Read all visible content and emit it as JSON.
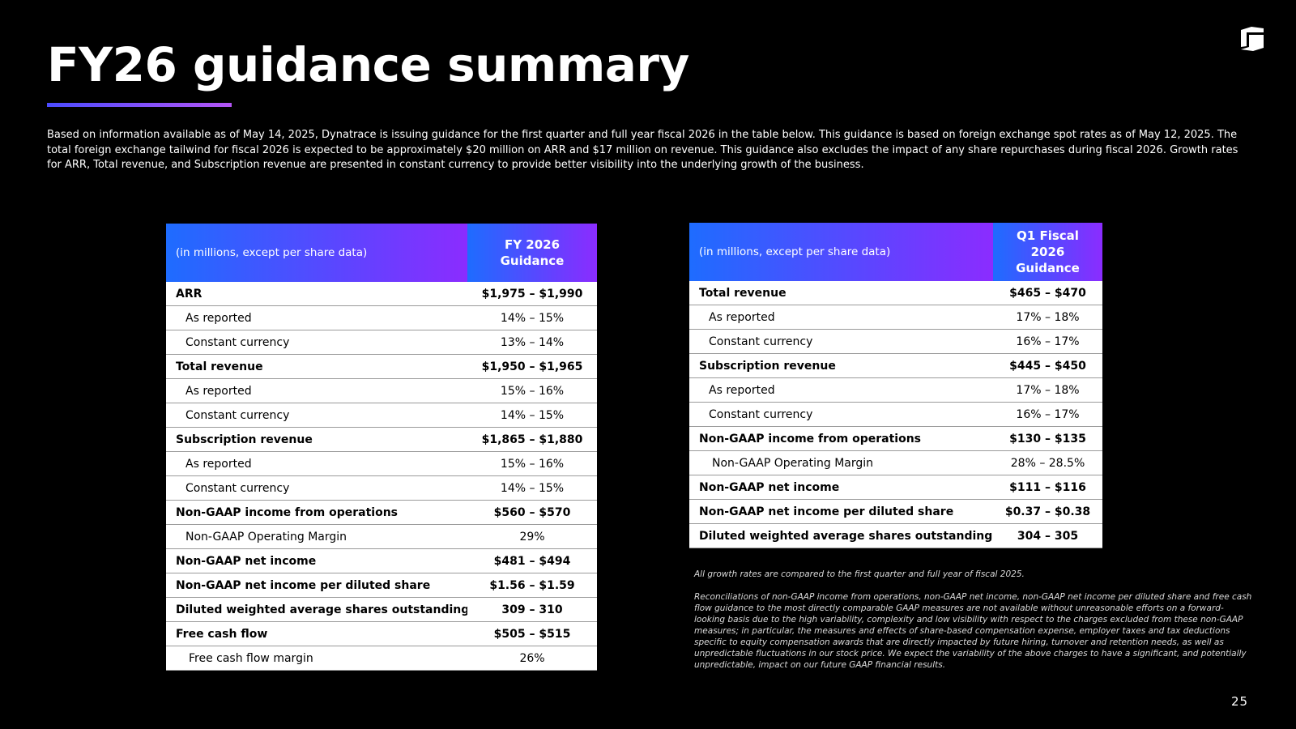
{
  "slide": {
    "title": "FY26 guidance summary",
    "intro": "Based on information available as of May 14, 2025, Dynatrace is issuing guidance for the first quarter and full year fiscal 2026 in the table below. This guidance is based on foreign exchange spot rates as of May 12, 2025. The total foreign exchange tailwind for fiscal 2026 is expected to be approximately $20 million on ARR and $17 million on revenue. This guidance also excludes the impact of any share repurchases during fiscal 2026. Growth rates for ARR, Total revenue, and Subscription revenue are presented in constant currency to provide better visibility into the underlying growth of the business.",
    "page_number": "25",
    "logo_icon": "dynatrace-logo-icon"
  },
  "table_fy": {
    "header_label": "(in millions, except per share data)",
    "header_value": "FY 2026 Guidance",
    "rows": [
      {
        "label": "ARR",
        "value": "$1,975 – $1,990",
        "bold": true,
        "indent": 0
      },
      {
        "label": "As reported",
        "value": "14% – 15%",
        "bold": false,
        "indent": 1
      },
      {
        "label": "Constant currency",
        "value": "13% – 14%",
        "bold": false,
        "indent": 1
      },
      {
        "label": "Total revenue",
        "value": "$1,950 – $1,965",
        "bold": true,
        "indent": 0
      },
      {
        "label": "As reported",
        "value": "15% – 16%",
        "bold": false,
        "indent": 1
      },
      {
        "label": "Constant currency",
        "value": "14% – 15%",
        "bold": false,
        "indent": 1
      },
      {
        "label": "Subscription revenue",
        "value": "$1,865 – $1,880",
        "bold": true,
        "indent": 0
      },
      {
        "label": "As reported",
        "value": "15% – 16%",
        "bold": false,
        "indent": 1
      },
      {
        "label": "Constant currency",
        "value": "14% – 15%",
        "bold": false,
        "indent": 1
      },
      {
        "label": "Non-GAAP income from operations",
        "value": "$560 – $570",
        "bold": true,
        "indent": 0
      },
      {
        "label": "Non-GAAP Operating Margin",
        "value": "29%",
        "bold": false,
        "indent": 1
      },
      {
        "label": "Non-GAAP net income",
        "value": "$481 – $494",
        "bold": true,
        "indent": 0
      },
      {
        "label": "Non-GAAP net income per diluted share",
        "value": "$1.56 – $1.59",
        "bold": true,
        "indent": 0
      },
      {
        "label": "Diluted weighted average shares outstanding",
        "value": "309 – 310",
        "bold": true,
        "indent": 0
      },
      {
        "label": "Free cash flow",
        "value": "$505 – $515",
        "bold": true,
        "indent": 0
      },
      {
        "label": "Free cash flow margin",
        "value": "26%",
        "bold": false,
        "indent": 2
      }
    ]
  },
  "table_q1": {
    "header_label": "(in millions, except per share data)",
    "header_value": "Q1 Fiscal 2026 Guidance",
    "rows": [
      {
        "label": "Total revenue",
        "value": "$465 – $470",
        "bold": true,
        "indent": 0
      },
      {
        "label": "As reported",
        "value": "17% – 18%",
        "bold": false,
        "indent": 1
      },
      {
        "label": "Constant currency",
        "value": "16% – 17%",
        "bold": false,
        "indent": 1
      },
      {
        "label": "Subscription revenue",
        "value": "$445 – $450",
        "bold": true,
        "indent": 0
      },
      {
        "label": "As reported",
        "value": "17% – 18%",
        "bold": false,
        "indent": 1
      },
      {
        "label": "Constant currency",
        "value": "16% – 17%",
        "bold": false,
        "indent": 1
      },
      {
        "label": "Non-GAAP income from operations",
        "value": "$130 – $135",
        "bold": true,
        "indent": 0
      },
      {
        "label": "Non-GAAP Operating Margin",
        "value": "28% – 28.5%",
        "bold": false,
        "indent": 2
      },
      {
        "label": "Non-GAAP net income",
        "value": "$111 – $116",
        "bold": true,
        "indent": 0
      },
      {
        "label": "Non-GAAP net income per diluted share",
        "value": "$0.37 – $0.38",
        "bold": true,
        "indent": 0
      },
      {
        "label": "Diluted weighted average shares outstanding",
        "value": "304 – 305",
        "bold": true,
        "indent": 0
      }
    ]
  },
  "footnotes": {
    "growth_note": "All growth rates are compared to the first quarter and full year of fiscal 2025.",
    "reconciliation_note": "Reconciliations of non-GAAP income from operations, non-GAAP net income, non-GAAP net income per diluted share and free cash flow guidance to the most directly comparable GAAP measures are not available without unreasonable efforts on a forward-looking basis due to the high variability, complexity and low visibility with respect to the charges excluded from these non-GAAP measures; in particular, the measures and effects of share-based compensation expense, employer taxes and tax deductions specific to equity compensation awards that are directly impacted by future hiring, turnover and retention needs, as well as unpredictable fluctuations in our stock price. We expect the variability of the above charges to have a significant, and potentially unpredictable, impact on our future GAAP financial results."
  }
}
